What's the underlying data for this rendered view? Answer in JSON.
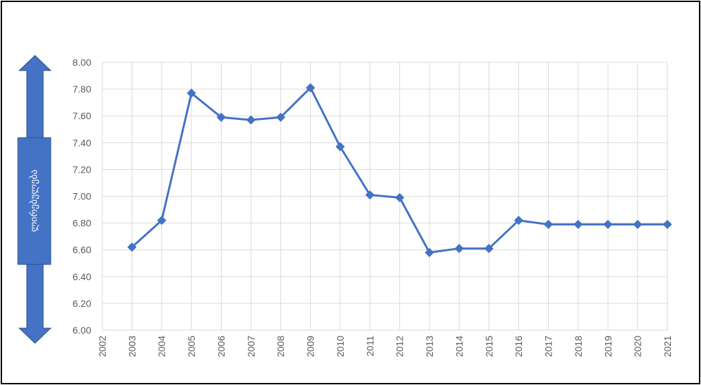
{
  "chart_data": {
    "type": "line",
    "title": "",
    "xlabel": "",
    "ylabel": "ლირებულება",
    "x": [
      "2002",
      "2003",
      "2004",
      "2005",
      "2006",
      "2007",
      "2008",
      "2009",
      "2010",
      "2011",
      "2012",
      "2013",
      "2014",
      "2015",
      "2016",
      "2017",
      "2018",
      "2019",
      "2020",
      "2021"
    ],
    "y_ticks": [
      "6.00",
      "6.20",
      "6.40",
      "6.60",
      "6.80",
      "7.00",
      "7.20",
      "7.40",
      "7.60",
      "7.80",
      "8.00"
    ],
    "ylim": [
      6.0,
      8.0
    ],
    "grid": true,
    "legend": "none",
    "series": [
      {
        "values": [
          null,
          6.62,
          6.82,
          7.77,
          7.59,
          7.57,
          7.59,
          7.81,
          7.37,
          7.01,
          6.99,
          6.58,
          6.61,
          6.61,
          6.82,
          6.79,
          6.79,
          6.79,
          6.79,
          6.79
        ],
        "color": "#4472c4",
        "marker": "diamond"
      }
    ]
  },
  "colors": {
    "line": "#4472c4",
    "arrow_fill": "#4472c4",
    "arrow_border": "#2f528f",
    "grid": "#d9d9d9"
  }
}
